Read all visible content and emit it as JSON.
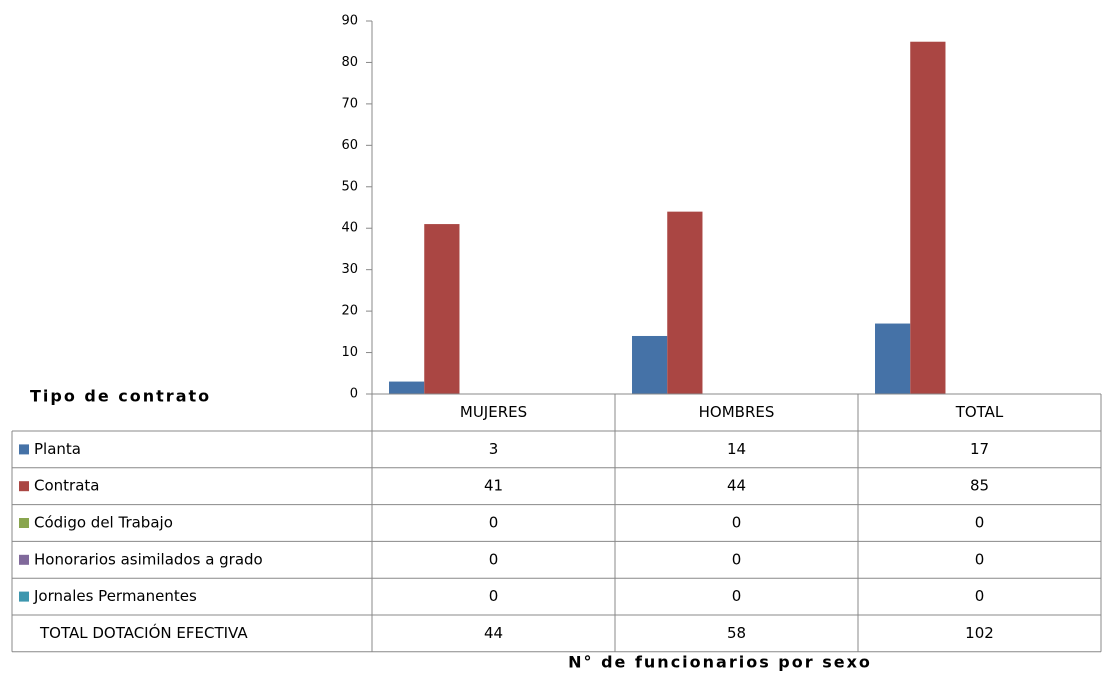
{
  "chart_data": {
    "type": "bar",
    "legend_title": "Tipo de contrato",
    "x_label": "N° de funcionarios por sexo",
    "categories": [
      "MUJERES",
      "HOMBRES",
      "TOTAL"
    ],
    "series": [
      {
        "name": "Planta",
        "color": "#4572a7",
        "values": [
          3,
          14,
          17
        ]
      },
      {
        "name": "Contrata",
        "color": "#aa4643",
        "values": [
          41,
          44,
          85
        ]
      },
      {
        "name": "Código del Trabajo",
        "color": "#89a54e",
        "values": [
          0,
          0,
          0
        ]
      },
      {
        "name": "Honorarios asimilados a grado",
        "color": "#80699b",
        "values": [
          0,
          0,
          0
        ]
      },
      {
        "name": "Jornales Permanentes",
        "color": "#3d96ae",
        "values": [
          0,
          0,
          0
        ]
      }
    ],
    "total_row": {
      "name": "TOTAL DOTACIÓN EFECTIVA",
      "values": [
        44,
        58,
        102
      ]
    },
    "ylim": [
      0,
      90
    ],
    "yticks": [
      0,
      10,
      20,
      30,
      40,
      50,
      60,
      70,
      80,
      90
    ]
  }
}
